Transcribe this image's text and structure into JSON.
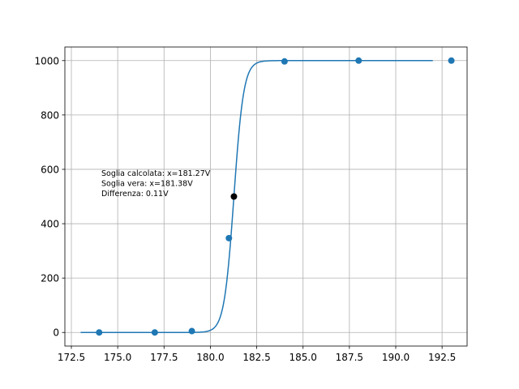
{
  "chart_data": {
    "type": "scatter",
    "title": "",
    "xlabel": "",
    "ylabel": "",
    "xlim": [
      172.15,
      193.85
    ],
    "ylim": [
      -50,
      1050
    ],
    "grid": true,
    "x_ticks": [
      172.5,
      175.0,
      177.5,
      180.0,
      182.5,
      185.0,
      187.5,
      190.0,
      192.5
    ],
    "x_tick_labels": [
      "172.5",
      "175.0",
      "177.5",
      "180.0",
      "182.5",
      "185.0",
      "187.5",
      "190.0",
      "192.5"
    ],
    "y_ticks": [
      0,
      200,
      400,
      600,
      800,
      1000
    ],
    "y_tick_labels": [
      "0",
      "200",
      "400",
      "600",
      "800",
      "1000"
    ],
    "series": [
      {
        "kind": "scatter",
        "color": "#1f77b4",
        "points": [
          {
            "x": 174.0,
            "y": 0
          },
          {
            "x": 177.0,
            "y": 0
          },
          {
            "x": 179.0,
            "y": 5
          },
          {
            "x": 181.0,
            "y": 347
          },
          {
            "x": 184.0,
            "y": 997
          },
          {
            "x": 188.0,
            "y": 1000
          },
          {
            "x": 193.0,
            "y": 1000
          }
        ]
      },
      {
        "kind": "line",
        "color": "#1f77b4",
        "function": "logistic",
        "x_range": [
          173.0,
          192.0
        ],
        "amplitude": 1000,
        "midpoint": 181.27,
        "slope": 3.8
      },
      {
        "kind": "scatter",
        "color": "#000000",
        "points": [
          {
            "x": 181.27,
            "y": 500
          }
        ]
      }
    ],
    "annotations": [
      "Soglia calcolata: x=181.27V",
      "Soglia vera: x=181.38V",
      "Differenza: 0.11V"
    ]
  }
}
